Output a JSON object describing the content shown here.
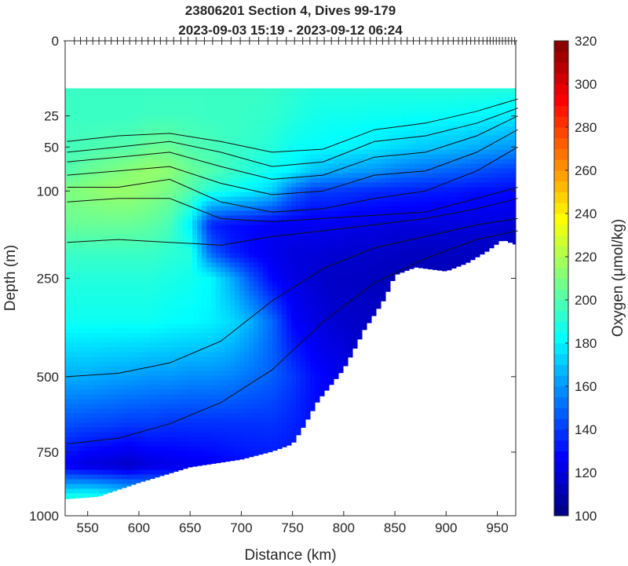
{
  "chart_data": {
    "type": "heatmap",
    "title": "23806201 Section 4, Dives 99-179",
    "subtitle": "2023-09-03 15:19 - 2023-09-12 06:24",
    "xlabel": "Distance (km)",
    "ylabel": "Depth (m)",
    "colorbar_label": "Oxygen (μmol/kg)",
    "xlim": [
      528,
      968
    ],
    "ylim": [
      0,
      1000
    ],
    "y_scale": "sqrt",
    "clim": [
      100,
      320
    ],
    "colormap": "jet",
    "xticks": [
      "550",
      "600",
      "650",
      "700",
      "750",
      "800",
      "850",
      "900",
      "950"
    ],
    "xtick_values": [
      550,
      600,
      650,
      700,
      750,
      800,
      850,
      900,
      950
    ],
    "yticks": [
      "0",
      "25",
      "50",
      "100",
      "250",
      "500",
      "750",
      "1000"
    ],
    "ytick_values": [
      0,
      25,
      50,
      100,
      250,
      500,
      750,
      1000
    ],
    "cticks": [
      "100",
      "120",
      "140",
      "160",
      "180",
      "200",
      "220",
      "240",
      "260",
      "280",
      "300",
      "320"
    ],
    "ctick_values": [
      100,
      120,
      140,
      160,
      180,
      200,
      220,
      240,
      260,
      280,
      300,
      320
    ],
    "grid": false,
    "top_depth": 10,
    "distances": [
      530,
      550,
      570,
      590,
      610,
      630,
      650,
      670,
      690,
      710,
      730,
      750,
      770,
      790,
      810,
      830,
      850,
      870,
      890,
      910,
      930,
      950,
      970
    ],
    "depths": [
      10,
      25,
      50,
      75,
      100,
      150,
      200,
      250,
      350,
      500,
      650,
      800,
      950
    ],
    "oxygen": [
      [
        195,
        195,
        197,
        200,
        210,
        205,
        195,
        190,
        185,
        165,
        145,
        125,
        200
      ],
      [
        195,
        195,
        198,
        205,
        212,
        205,
        195,
        190,
        185,
        165,
        143,
        120,
        205
      ],
      [
        195,
        195,
        200,
        208,
        215,
        205,
        195,
        190,
        185,
        163,
        142,
        118,
        200
      ],
      [
        195,
        195,
        200,
        212,
        215,
        205,
        195,
        190,
        185,
        162,
        140,
        115,
        195
      ],
      [
        195,
        196,
        205,
        215,
        212,
        203,
        195,
        190,
        185,
        160,
        140,
        120,
        190
      ],
      [
        195,
        196,
        205,
        212,
        208,
        198,
        192,
        188,
        183,
        160,
        138,
        122,
        185
      ],
      [
        195,
        196,
        200,
        205,
        200,
        180,
        190,
        186,
        182,
        158,
        138,
        124,
        180
      ],
      [
        195,
        195,
        198,
        200,
        190,
        135,
        150,
        182,
        180,
        158,
        138,
        125,
        175
      ],
      [
        195,
        195,
        195,
        195,
        185,
        130,
        135,
        165,
        175,
        156,
        138,
        128,
        170
      ],
      [
        195,
        194,
        193,
        190,
        180,
        128,
        128,
        145,
        165,
        152,
        138,
        130,
        165
      ],
      [
        194,
        193,
        190,
        185,
        172,
        125,
        124,
        128,
        150,
        148,
        138,
        132,
        160
      ],
      [
        192,
        190,
        185,
        180,
        150,
        125,
        120,
        122,
        128,
        140,
        135,
        130,
        155
      ],
      [
        190,
        187,
        183,
        170,
        140,
        124,
        120,
        118,
        122,
        130,
        130,
        128,
        150
      ],
      [
        190,
        186,
        182,
        165,
        140,
        124,
        118,
        115,
        118,
        125,
        125,
        125,
        150
      ],
      [
        190,
        186,
        180,
        162,
        138,
        122,
        117,
        115,
        116,
        120,
        120,
        120,
        150
      ],
      [
        190,
        185,
        178,
        160,
        136,
        122,
        116,
        114,
        115,
        118,
        118,
        118,
        150
      ],
      [
        190,
        185,
        175,
        155,
        135,
        120,
        115,
        113,
        115,
        118,
        118,
        118,
        150
      ],
      [
        190,
        184,
        172,
        152,
        134,
        120,
        114,
        112,
        115,
        118,
        118,
        118,
        150
      ],
      [
        190,
        184,
        170,
        150,
        133,
        120,
        114,
        112,
        115,
        118,
        118,
        118,
        150
      ],
      [
        190,
        183,
        168,
        148,
        132,
        120,
        114,
        112,
        115,
        118,
        118,
        118,
        150
      ],
      [
        190,
        182,
        165,
        145,
        130,
        120,
        114,
        112,
        115,
        118,
        118,
        118,
        150
      ],
      [
        190,
        180,
        162,
        142,
        130,
        120,
        114,
        112,
        115,
        118,
        118,
        118,
        150
      ],
      [
        190,
        178,
        160,
        140,
        128,
        118,
        113,
        112,
        115,
        118,
        118,
        118,
        150
      ]
    ],
    "bottom_depth": [
      [
        530,
        930
      ],
      [
        560,
        920
      ],
      [
        600,
        865
      ],
      [
        650,
        805
      ],
      [
        700,
        776
      ],
      [
        730,
        747
      ],
      [
        750,
        720
      ],
      [
        760,
        664
      ],
      [
        775,
        573
      ],
      [
        800,
        477
      ],
      [
        820,
        370
      ],
      [
        840,
        294
      ],
      [
        850,
        243
      ],
      [
        870,
        227
      ],
      [
        900,
        235
      ],
      [
        920,
        219
      ],
      [
        940,
        196
      ],
      [
        955,
        175
      ],
      [
        970,
        185
      ]
    ],
    "contour_distances": [
      530,
      580,
      630,
      680,
      730,
      780,
      830,
      880,
      930,
      970
    ],
    "contours": [
      [
        45,
        40,
        38,
        45,
        55,
        52,
        35,
        30,
        22,
        15
      ],
      [
        55,
        50,
        45,
        55,
        70,
        65,
        45,
        40,
        30,
        20
      ],
      [
        65,
        60,
        55,
        70,
        85,
        80,
        60,
        55,
        40,
        25
      ],
      [
        80,
        75,
        70,
        90,
        105,
        100,
        80,
        75,
        55,
        35
      ],
      [
        95,
        95,
        85,
        115,
        130,
        125,
        110,
        100,
        75,
        50
      ],
      [
        115,
        110,
        110,
        140,
        145,
        140,
        135,
        130,
        110,
        95
      ],
      [
        180,
        175,
        180,
        185,
        170,
        160,
        150,
        140,
        125,
        110
      ],
      [
        500,
        490,
        460,
        400,
        300,
        230,
        190,
        170,
        150,
        140
      ],
      [
        720,
        700,
        650,
        580,
        480,
        350,
        260,
        210,
        175,
        160
      ]
    ],
    "dive_distances": [
      537,
      543,
      549,
      555,
      561,
      567,
      573,
      579,
      585,
      591,
      597,
      603,
      609,
      615,
      621,
      627,
      634,
      641,
      648,
      656,
      664,
      672,
      681,
      690,
      699,
      708,
      717,
      726,
      735,
      744,
      752,
      760,
      767,
      774,
      781,
      788,
      795,
      802,
      808,
      814,
      820,
      826,
      832,
      838,
      844,
      850,
      856,
      862,
      868,
      874,
      880,
      886,
      892,
      897,
      902,
      907,
      912,
      916,
      920,
      924,
      928,
      932,
      936,
      940,
      943,
      946,
      949,
      952,
      955,
      958,
      961,
      964,
      967
    ]
  }
}
